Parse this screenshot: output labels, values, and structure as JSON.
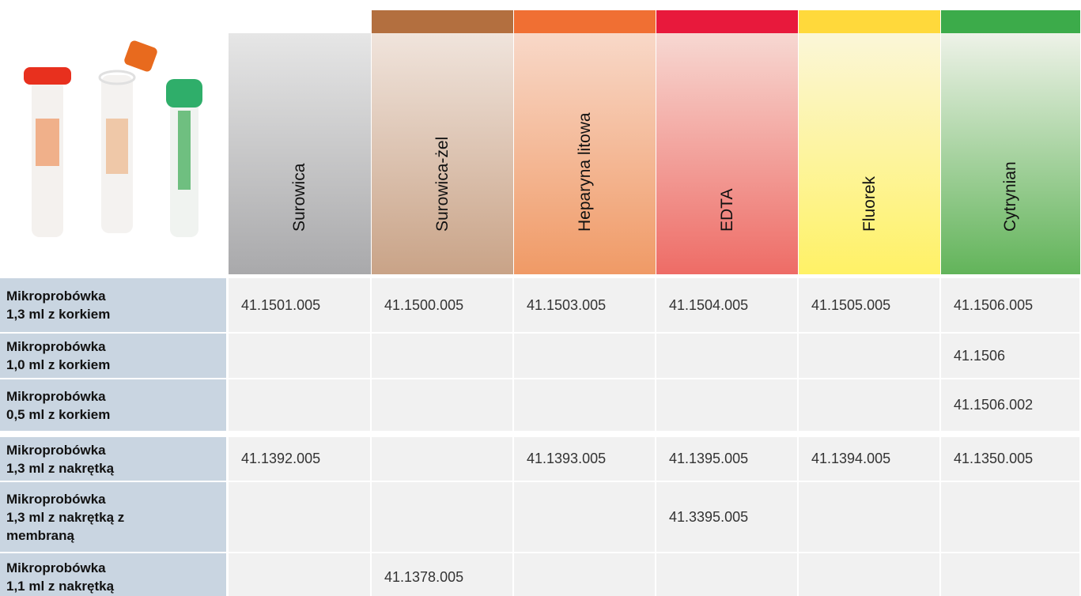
{
  "table": {
    "columns": [
      "Surowica",
      "Surowica-żel",
      "Heparyna litowa",
      "EDTA",
      "Fluorek",
      "Cytrynian"
    ],
    "rows": [
      {
        "label": [
          "Mikroprobówka",
          "1,3 ml z korkiem"
        ],
        "cells": [
          "41.1501.005",
          "41.1500.005",
          "41.1503.005",
          "41.1504.005",
          "41.1505.005",
          "41.1506.005"
        ]
      },
      {
        "label": [
          "Mikroprobówka",
          "1,0 ml z korkiem"
        ],
        "cells": [
          null,
          null,
          null,
          null,
          null,
          "41.1506"
        ]
      },
      {
        "label": [
          "Mikroprobówka",
          "0,5 ml z korkiem"
        ],
        "cells": [
          null,
          null,
          null,
          null,
          null,
          "41.1506.002"
        ]
      },
      {
        "label": [
          "Mikroprobówka",
          "1,3 ml z nakrętką"
        ],
        "cells": [
          "41.1392.005",
          null,
          "41.1393.005",
          "41.1395.005",
          "41.1394.005",
          "41.1350.005"
        ]
      },
      {
        "label": [
          "Mikroprobówka",
          "1,3 ml z nakrętką z",
          "membraną"
        ],
        "cells": [
          null,
          null,
          null,
          "41.3395.005",
          null,
          null
        ]
      },
      {
        "label": [
          "Mikroprobówka",
          "1,1 ml z nakrętką"
        ],
        "cells": [
          null,
          "41.1378.005",
          null,
          null,
          null,
          null
        ]
      }
    ]
  }
}
